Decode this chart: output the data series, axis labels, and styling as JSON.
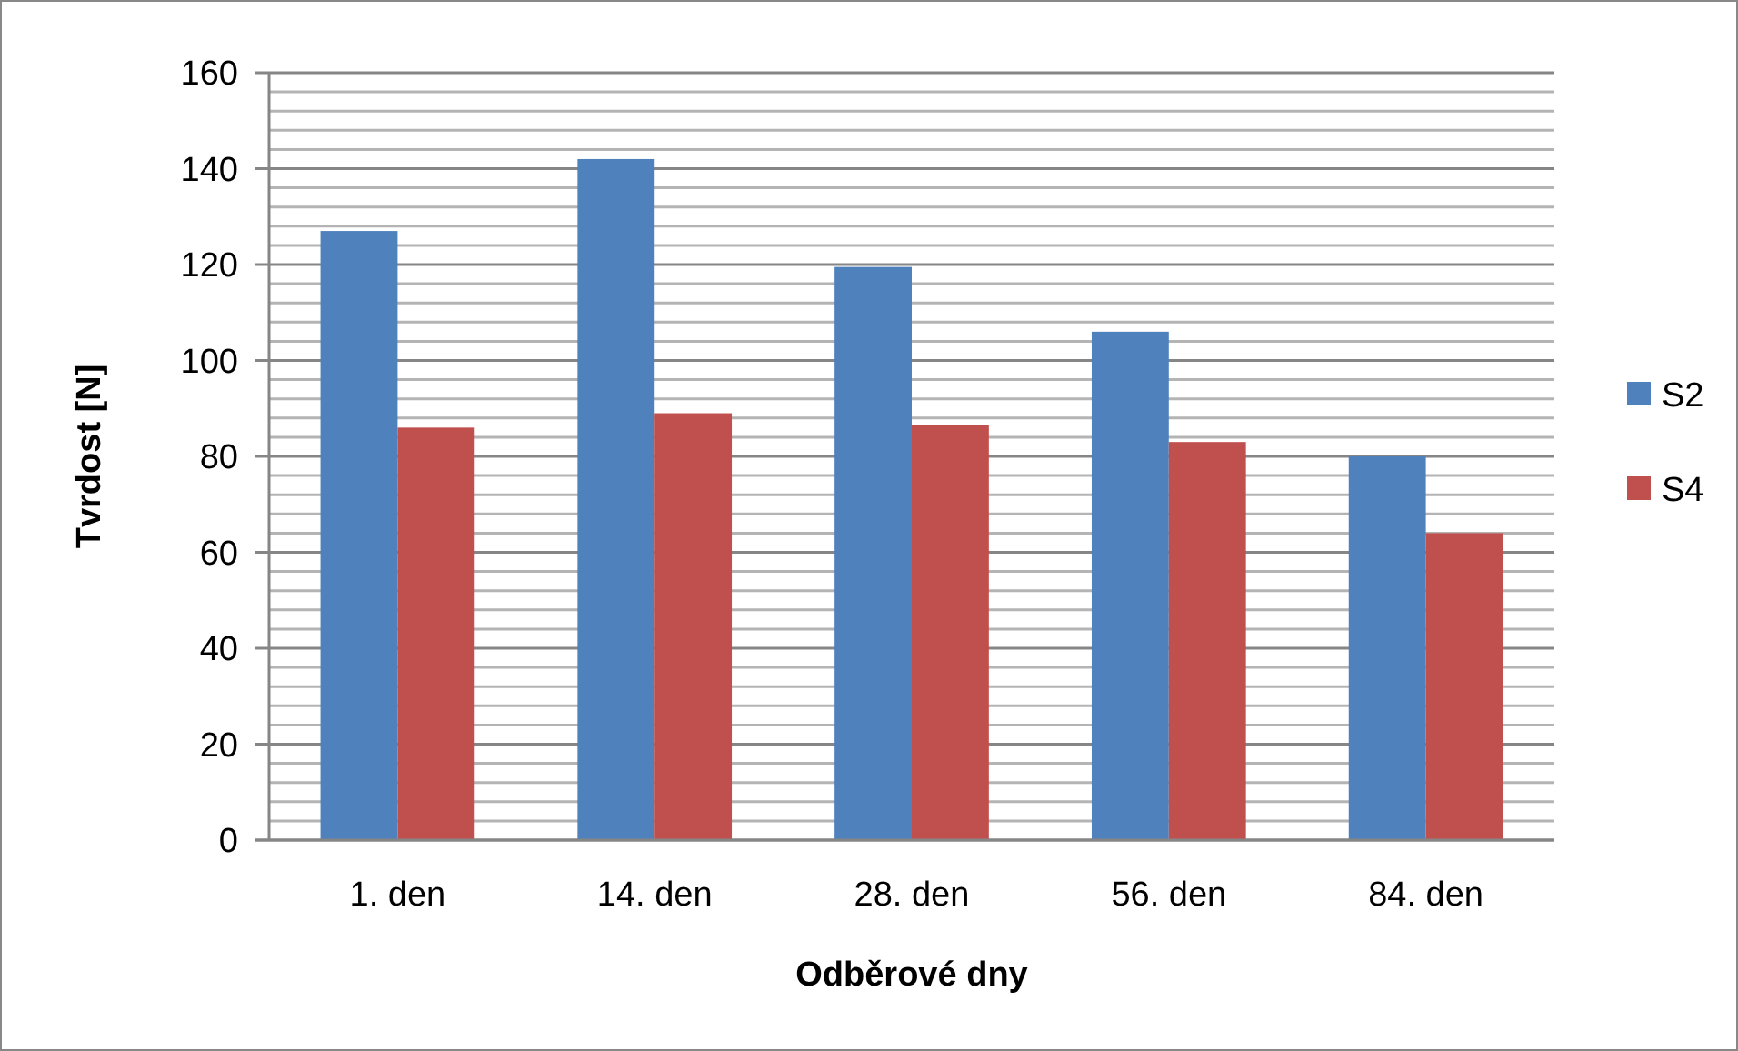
{
  "chart_data": {
    "type": "bar",
    "xlabel": "Odběrové dny",
    "ylabel": "Tvrdost [N]",
    "categories": [
      "1. den",
      "14. den",
      "28. den",
      "56. den",
      "84. den"
    ],
    "series": [
      {
        "name": "S2",
        "color": "#4f81bd",
        "values": [
          127,
          142,
          119.5,
          106,
          80
        ]
      },
      {
        "name": "S4",
        "color": "#c0504d",
        "values": [
          86,
          89,
          86.5,
          83,
          64
        ]
      }
    ],
    "ylim": [
      0,
      160
    ],
    "yticks": [
      0,
      {
        "value": 4,
        "label": null
      },
      {
        "value": 8,
        "label": null
      },
      {
        "value": 12,
        "label": null
      },
      {
        "value": 16,
        "label": null
      },
      20,
      {
        "value": 24,
        "label": null
      },
      {
        "value": 28,
        "label": null
      },
      {
        "value": 32,
        "label": null
      },
      {
        "value": 36,
        "label": null
      },
      40,
      {
        "value": 44,
        "label": null
      },
      {
        "value": 48,
        "label": null
      },
      {
        "value": 52,
        "label": null
      },
      {
        "value": 56,
        "label": null
      },
      60,
      {
        "value": 64,
        "label": null
      },
      {
        "value": 68,
        "label": null
      },
      {
        "value": 72,
        "label": null
      },
      {
        "value": 76,
        "label": null
      },
      80,
      {
        "value": 84,
        "label": null
      },
      {
        "value": 88,
        "label": null
      },
      {
        "value": 92,
        "label": null
      },
      {
        "value": 96,
        "label": null
      },
      100,
      {
        "value": 104,
        "label": null
      },
      {
        "value": 108,
        "label": null
      },
      {
        "value": 112,
        "label": null
      },
      {
        "value": 116,
        "label": null
      },
      120,
      {
        "value": 124,
        "label": null
      },
      {
        "value": 128,
        "label": null
      },
      {
        "value": 132,
        "label": null
      },
      {
        "value": 136,
        "label": null
      },
      140,
      {
        "value": 144,
        "label": null
      },
      {
        "value": 148,
        "label": null
      },
      {
        "value": 152,
        "label": null
      },
      {
        "value": 156,
        "label": null
      },
      160
    ],
    "grid": true,
    "legend": "right"
  }
}
